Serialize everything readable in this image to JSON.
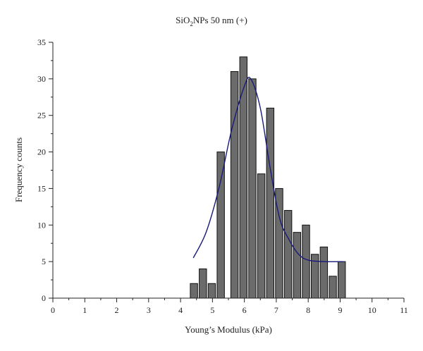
{
  "chart_data": {
    "type": "bar",
    "title_main": "SiO",
    "title_sub": "2",
    "title_rest": "NPs 50 nm (+)",
    "xlabel": "Young’s Modulus (kPa)",
    "ylabel": "Frequency counts",
    "xlim": [
      0,
      11
    ],
    "ylim": [
      0,
      35
    ],
    "x_ticks": [
      0,
      1,
      2,
      3,
      4,
      5,
      6,
      7,
      8,
      9,
      10,
      11
    ],
    "y_ticks": [
      0,
      5,
      10,
      15,
      20,
      25,
      30,
      35
    ],
    "bin_width": 0.28,
    "bins": [
      {
        "center": 4.42,
        "value": 2
      },
      {
        "center": 4.7,
        "value": 4
      },
      {
        "center": 4.98,
        "value": 2
      },
      {
        "center": 5.26,
        "value": 20
      },
      {
        "center": 5.69,
        "value": 31
      },
      {
        "center": 5.97,
        "value": 33
      },
      {
        "center": 6.25,
        "value": 30
      },
      {
        "center": 6.53,
        "value": 17
      },
      {
        "center": 6.81,
        "value": 26
      },
      {
        "center": 7.09,
        "value": 15
      },
      {
        "center": 7.37,
        "value": 12
      },
      {
        "center": 7.65,
        "value": 9
      },
      {
        "center": 7.93,
        "value": 10
      },
      {
        "center": 8.21,
        "value": 6
      },
      {
        "center": 8.49,
        "value": 7
      },
      {
        "center": 8.77,
        "value": 3
      },
      {
        "center": 9.05,
        "value": 5
      }
    ],
    "fit_curve": {
      "points": [
        [
          4.4,
          5.5
        ],
        [
          4.8,
          9
        ],
        [
          5.2,
          15
        ],
        [
          5.6,
          23
        ],
        [
          6.0,
          29
        ],
        [
          6.2,
          30
        ],
        [
          6.5,
          26
        ],
        [
          6.8,
          18
        ],
        [
          7.1,
          11
        ],
        [
          7.4,
          8
        ],
        [
          7.7,
          6
        ],
        [
          8.0,
          5.2
        ],
        [
          8.5,
          5.0
        ],
        [
          9.1,
          5.0
        ]
      ]
    },
    "bar_color": "#6b6b6b",
    "bar_stroke": "#111111",
    "curve_color": "#1a1a7a",
    "grid": false
  }
}
